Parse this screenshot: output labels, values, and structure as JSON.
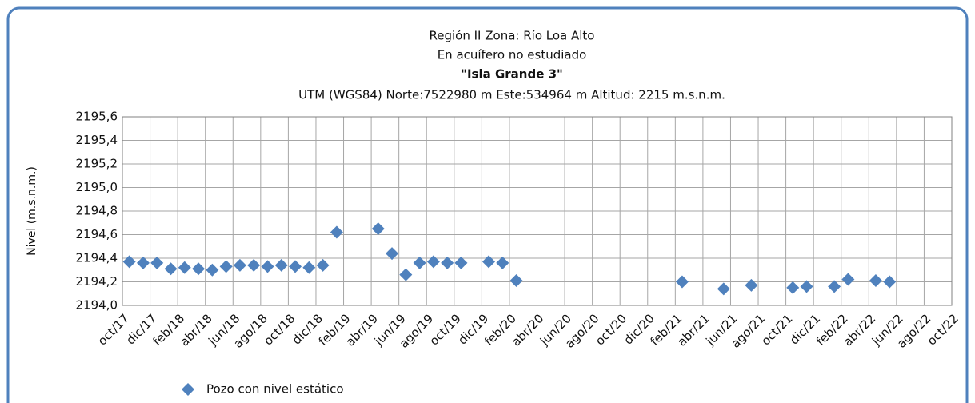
{
  "chart_data": {
    "type": "scatter",
    "title_lines": [
      "Región II  Zona: Río Loa Alto",
      "En acuífero no estudiado",
      "\"Isla Grande 3\"",
      "UTM (WGS84) Norte:7522980 m   Este:534964 m Altitud: 2215 m.s.n.m."
    ],
    "y_label": "Nivel (m.s.n.m.)",
    "ylim": [
      2194.0,
      2195.6
    ],
    "yticks": [
      {
        "value": 2194.0,
        "label": "2194,0"
      },
      {
        "value": 2194.2,
        "label": "2194,2"
      },
      {
        "value": 2194.4,
        "label": "2194,4"
      },
      {
        "value": 2194.6,
        "label": "2194,6"
      },
      {
        "value": 2194.8,
        "label": "2194,8"
      },
      {
        "value": 2195.0,
        "label": "2195,0"
      },
      {
        "value": 2195.2,
        "label": "2195,2"
      },
      {
        "value": 2195.4,
        "label": "2195,4"
      },
      {
        "value": 2195.6,
        "label": "2195,6"
      }
    ],
    "xlim": [
      "2017-10",
      "2022-10"
    ],
    "xticks": [
      {
        "value": "2017-10",
        "label": "oct/17"
      },
      {
        "value": "2017-12",
        "label": "dic/17"
      },
      {
        "value": "2018-02",
        "label": "feb/18"
      },
      {
        "value": "2018-04",
        "label": "abr/18"
      },
      {
        "value": "2018-06",
        "label": "jun/18"
      },
      {
        "value": "2018-08",
        "label": "ago/18"
      },
      {
        "value": "2018-10",
        "label": "oct/18"
      },
      {
        "value": "2018-12",
        "label": "dic/18"
      },
      {
        "value": "2019-02",
        "label": "feb/19"
      },
      {
        "value": "2019-04",
        "label": "abr/19"
      },
      {
        "value": "2019-06",
        "label": "jun/19"
      },
      {
        "value": "2019-08",
        "label": "ago/19"
      },
      {
        "value": "2019-10",
        "label": "oct/19"
      },
      {
        "value": "2019-12",
        "label": "dic/19"
      },
      {
        "value": "2020-02",
        "label": "feb/20"
      },
      {
        "value": "2020-04",
        "label": "abr/20"
      },
      {
        "value": "2020-06",
        "label": "jun/20"
      },
      {
        "value": "2020-08",
        "label": "ago/20"
      },
      {
        "value": "2020-10",
        "label": "oct/20"
      },
      {
        "value": "2020-12",
        "label": "dic/20"
      },
      {
        "value": "2021-02",
        "label": "feb/21"
      },
      {
        "value": "2021-04",
        "label": "abr/21"
      },
      {
        "value": "2021-06",
        "label": "jun/21"
      },
      {
        "value": "2021-08",
        "label": "ago/21"
      },
      {
        "value": "2021-10",
        "label": "oct/21"
      },
      {
        "value": "2021-12",
        "label": "dic/21"
      },
      {
        "value": "2022-02",
        "label": "feb/22"
      },
      {
        "value": "2022-04",
        "label": "abr/22"
      },
      {
        "value": "2022-06",
        "label": "jun/22"
      },
      {
        "value": "2022-08",
        "label": "ago/22"
      },
      {
        "value": "2022-10",
        "label": "oct/22"
      }
    ],
    "grid": true,
    "series": [
      {
        "name": "Pozo con nivel estático",
        "color": "#4f81bd",
        "x": [
          "2017-10",
          "2017-11",
          "2017-12",
          "2018-01",
          "2018-02",
          "2018-03",
          "2018-04",
          "2018-05",
          "2018-06",
          "2018-07",
          "2018-08",
          "2018-09",
          "2018-10",
          "2018-11",
          "2018-12",
          "2019-01",
          "2019-04",
          "2019-05",
          "2019-06",
          "2019-07",
          "2019-08",
          "2019-09",
          "2019-10",
          "2019-12",
          "2020-01",
          "2020-02",
          "2021-02",
          "2021-05",
          "2021-07",
          "2021-10",
          "2021-11",
          "2022-01",
          "2022-02",
          "2022-04",
          "2022-05"
        ],
        "values": [
          2194.37,
          2194.36,
          2194.36,
          2194.31,
          2194.32,
          2194.31,
          2194.3,
          2194.33,
          2194.34,
          2194.34,
          2194.33,
          2194.34,
          2194.33,
          2194.32,
          2194.34,
          2194.62,
          2194.65,
          2194.44,
          2194.26,
          2194.36,
          2194.37,
          2194.36,
          2194.36,
          2194.37,
          2194.36,
          2194.21,
          2194.2,
          2194.14,
          2194.17,
          2194.15,
          2194.16,
          2194.16,
          2194.22,
          2194.21,
          2194.2
        ]
      }
    ]
  }
}
